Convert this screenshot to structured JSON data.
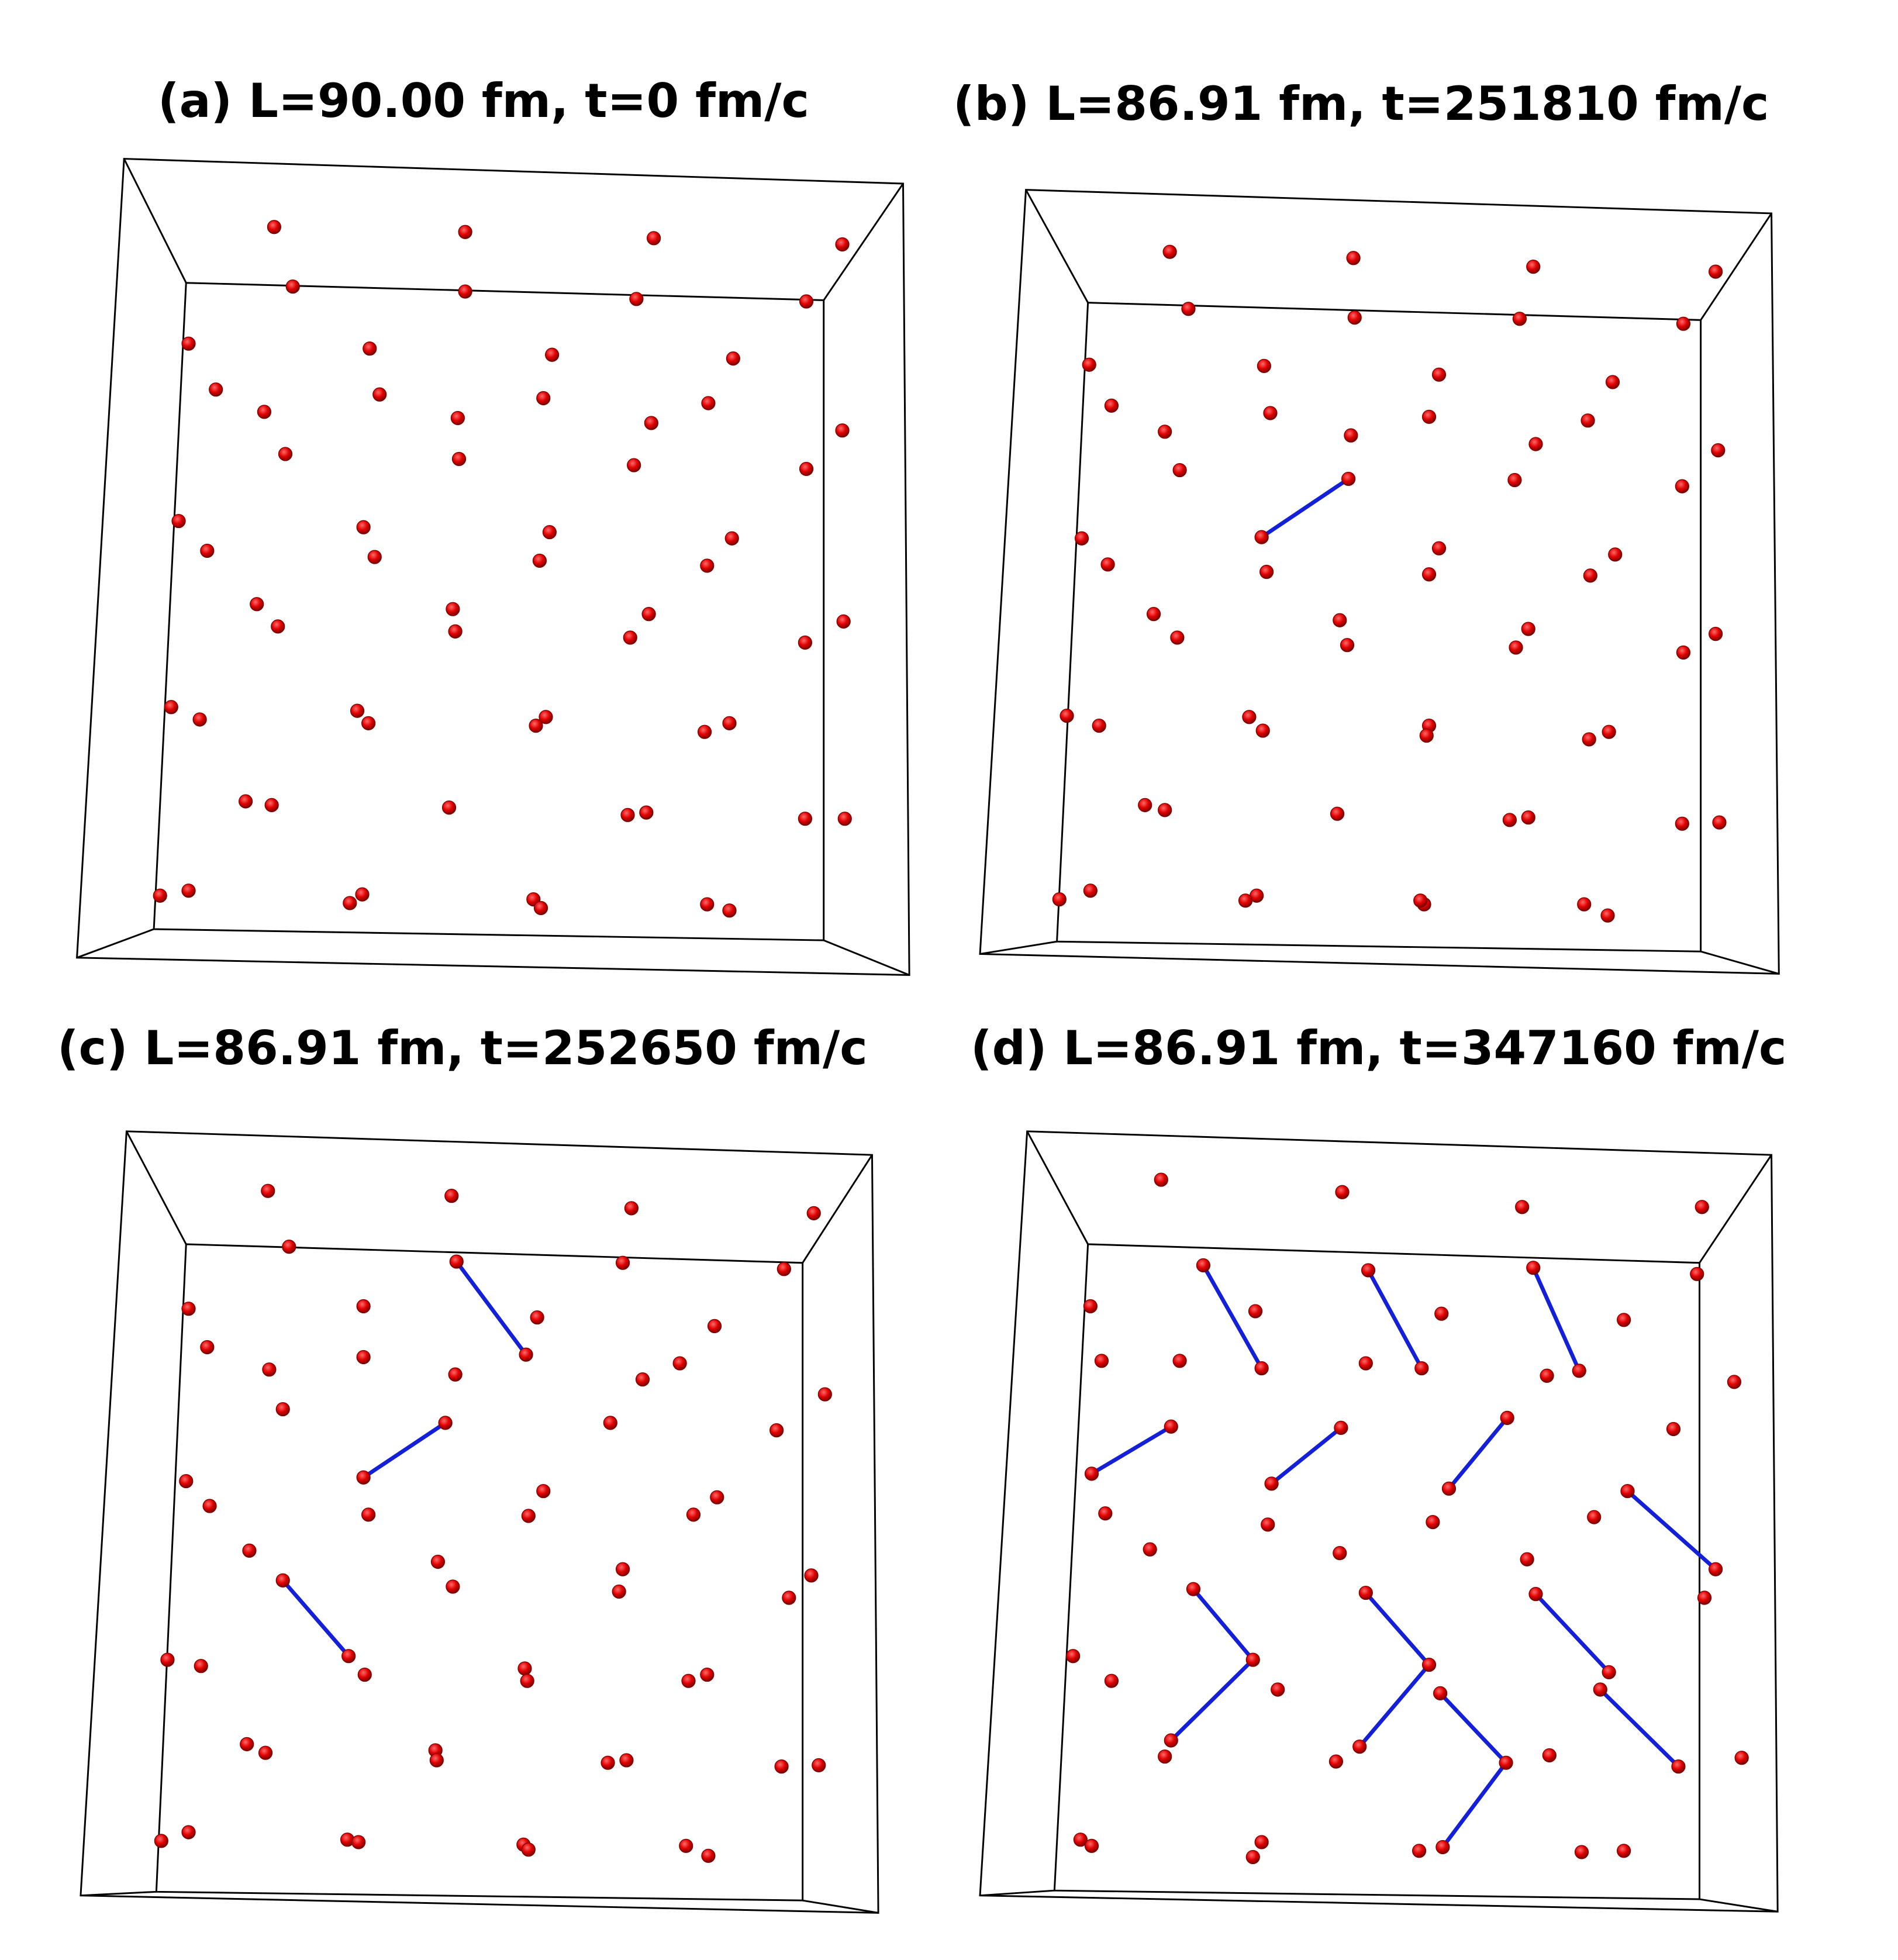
{
  "panels": [
    {
      "id": "a",
      "title": "(a) L=90.00 fm, t=0 fm/c",
      "box": {
        "front": [
          [
            150,
            228
          ],
          [
            664,
            242
          ],
          [
            664,
            758
          ],
          [
            124,
            749
          ]
        ],
        "back": [
          [
            100,
            128
          ],
          [
            728,
            148
          ],
          [
            733,
            786
          ],
          [
            62,
            772
          ]
        ]
      },
      "particles": [
        [
          221,
          183
        ],
        [
          375,
          187
        ],
        [
          527,
          192
        ],
        [
          679,
          197
        ],
        [
          236,
          231
        ],
        [
          375,
          235
        ],
        [
          513,
          241
        ],
        [
          650,
          243
        ],
        [
          152,
          277
        ],
        [
          298,
          281
        ],
        [
          445,
          286
        ],
        [
          591,
          289
        ],
        [
          174,
          314
        ],
        [
          306,
          318
        ],
        [
          438,
          321
        ],
        [
          571,
          325
        ],
        [
          213,
          332
        ],
        [
          369,
          337
        ],
        [
          525,
          341
        ],
        [
          679,
          347
        ],
        [
          230,
          366
        ],
        [
          370,
          370
        ],
        [
          511,
          375
        ],
        [
          650,
          378
        ],
        [
          144,
          420
        ],
        [
          293,
          425
        ],
        [
          443,
          429
        ],
        [
          590,
          434
        ],
        [
          167,
          444
        ],
        [
          302,
          449
        ],
        [
          435,
          452
        ],
        [
          570,
          456
        ],
        [
          207,
          487
        ],
        [
          365,
          491
        ],
        [
          523,
          495
        ],
        [
          680,
          501
        ],
        [
          224,
          505
        ],
        [
          367,
          509
        ],
        [
          508,
          514
        ],
        [
          649,
          518
        ],
        [
          138,
          570
        ],
        [
          288,
          573
        ],
        [
          440,
          578
        ],
        [
          588,
          583
        ],
        [
          161,
          580
        ],
        [
          297,
          583
        ],
        [
          432,
          585
        ],
        [
          568,
          590
        ],
        [
          198,
          646
        ],
        [
          362,
          651
        ],
        [
          521,
          655
        ],
        [
          681,
          660
        ],
        [
          219,
          649
        ],
        [
          506,
          657
        ],
        [
          649,
          660
        ],
        [
          129,
          722
        ],
        [
          292,
          721
        ],
        [
          430,
          725
        ],
        [
          570,
          729
        ],
        [
          152,
          718
        ],
        [
          282,
          728
        ],
        [
          436,
          732
        ],
        [
          588,
          734
        ]
      ],
      "bonds": []
    },
    {
      "id": "b",
      "title": "(b) L=86.91 fm, t=251810 fm/c",
      "box": {
        "front": [
          [
            877,
            244
          ],
          [
            1371,
            258
          ],
          [
            1371,
            767
          ],
          [
            852,
            759
          ]
        ],
        "back": [
          [
            827,
            153
          ],
          [
            1428,
            172
          ],
          [
            1434,
            785
          ],
          [
            790,
            769
          ]
        ]
      },
      "particles": [
        [
          943,
          203
        ],
        [
          1091,
          208
        ],
        [
          1236,
          215
        ],
        [
          1383,
          219
        ],
        [
          958,
          249
        ],
        [
          1092,
          256
        ],
        [
          1225,
          257
        ],
        [
          1357,
          261
        ],
        [
          878,
          294
        ],
        [
          1019,
          295
        ],
        [
          1160,
          302
        ],
        [
          1300,
          308
        ],
        [
          896,
          327
        ],
        [
          1024,
          333
        ],
        [
          1152,
          336
        ],
        [
          1280,
          339
        ],
        [
          939,
          348
        ],
        [
          1089,
          351
        ],
        [
          1238,
          358
        ],
        [
          1385,
          363
        ],
        [
          951,
          379
        ],
        [
          1087,
          386
        ],
        [
          1221,
          387
        ],
        [
          1356,
          392
        ],
        [
          872,
          434
        ],
        [
          1017,
          433
        ],
        [
          1160,
          442
        ],
        [
          1302,
          447
        ],
        [
          893,
          455
        ],
        [
          1021,
          461
        ],
        [
          1152,
          463
        ],
        [
          1282,
          464
        ],
        [
          930,
          495
        ],
        [
          1080,
          500
        ],
        [
          1232,
          507
        ],
        [
          1383,
          511
        ],
        [
          949,
          514
        ],
        [
          1086,
          520
        ],
        [
          1222,
          522
        ],
        [
          1357,
          526
        ],
        [
          860,
          577
        ],
        [
          1007,
          578
        ],
        [
          1152,
          585
        ],
        [
          1297,
          590
        ],
        [
          886,
          585
        ],
        [
          1018,
          589
        ],
        [
          1150,
          593
        ],
        [
          1281,
          596
        ],
        [
          923,
          649
        ],
        [
          1078,
          656
        ],
        [
          1232,
          659
        ],
        [
          1386,
          663
        ],
        [
          939,
          653
        ],
        [
          1217,
          661
        ],
        [
          1356,
          664
        ],
        [
          854,
          725
        ],
        [
          1013,
          722
        ],
        [
          1148,
          729
        ],
        [
          1296,
          738
        ],
        [
          879,
          718
        ],
        [
          1004,
          726
        ],
        [
          1145,
          726
        ],
        [
          1277,
          729
        ]
      ],
      "bonds": [
        [
          1087,
          386,
          1017,
          433
        ]
      ]
    },
    {
      "id": "c",
      "title": "(c) L=86.91 fm, t=252650 fm/c",
      "box": {
        "front": [
          [
            150,
            1003
          ],
          [
            647,
            1018
          ],
          [
            647,
            1532
          ],
          [
            126,
            1525
          ]
        ],
        "back": [
          [
            102,
            912
          ],
          [
            703,
            931
          ],
          [
            708,
            1542
          ],
          [
            65,
            1528
          ]
        ]
      },
      "particles": [
        [
          216,
          960
        ],
        [
          364,
          964
        ],
        [
          509,
          974
        ],
        [
          656,
          978
        ],
        [
          233,
          1005
        ],
        [
          368,
          1017
        ],
        [
          502,
          1018
        ],
        [
          632,
          1023
        ],
        [
          152,
          1055
        ],
        [
          293,
          1053
        ],
        [
          424,
          1092
        ],
        [
          576,
          1069
        ],
        [
          167,
          1086
        ],
        [
          293,
          1094
        ],
        [
          433,
          1062
        ],
        [
          548,
          1099
        ],
        [
          217,
          1104
        ],
        [
          367,
          1108
        ],
        [
          518,
          1112
        ],
        [
          665,
          1124
        ],
        [
          228,
          1136
        ],
        [
          359,
          1147
        ],
        [
          492,
          1147
        ],
        [
          626,
          1153
        ],
        [
          150,
          1194
        ],
        [
          293,
          1191
        ],
        [
          438,
          1202
        ],
        [
          578,
          1207
        ],
        [
          169,
          1214
        ],
        [
          297,
          1221
        ],
        [
          426,
          1222
        ],
        [
          559,
          1221
        ],
        [
          201,
          1250
        ],
        [
          353,
          1259
        ],
        [
          502,
          1265
        ],
        [
          654,
          1270
        ],
        [
          228,
          1274
        ],
        [
          365,
          1279
        ],
        [
          499,
          1283
        ],
        [
          636,
          1288
        ],
        [
          135,
          1338
        ],
        [
          281,
          1335
        ],
        [
          423,
          1345
        ],
        [
          570,
          1350
        ],
        [
          162,
          1343
        ],
        [
          294,
          1350
        ],
        [
          425,
          1355
        ],
        [
          555,
          1355
        ],
        [
          199,
          1406
        ],
        [
          351,
          1411
        ],
        [
          505,
          1419
        ],
        [
          660,
          1423
        ],
        [
          214,
          1413
        ],
        [
          352,
          1419
        ],
        [
          490,
          1421
        ],
        [
          630,
          1424
        ],
        [
          130,
          1484
        ],
        [
          280,
          1483
        ],
        [
          422,
          1487
        ],
        [
          571,
          1496
        ],
        [
          152,
          1477
        ],
        [
          289,
          1485
        ],
        [
          426,
          1491
        ],
        [
          553,
          1488
        ]
      ],
      "bonds": [
        [
          368,
          1017,
          424,
          1092
        ],
        [
          359,
          1147,
          293,
          1191
        ],
        [
          228,
          1274,
          281,
          1335
        ]
      ]
    },
    {
      "id": "d",
      "title": "(d) L=86.91 fm, t=347160 fm/c",
      "box": {
        "front": [
          [
            877,
            1003
          ],
          [
            1370,
            1018
          ],
          [
            1370,
            1531
          ],
          [
            850,
            1524
          ]
        ],
        "back": [
          [
            828,
            912
          ],
          [
            1428,
            931
          ],
          [
            1433,
            1541
          ],
          [
            790,
            1528
          ]
        ]
      },
      "particles": [
        [
          936,
          951
        ],
        [
          1082,
          961
        ],
        [
          1227,
          973
        ],
        [
          1372,
          973
        ],
        [
          970,
          1020
        ],
        [
          1103,
          1024
        ],
        [
          1236,
          1022
        ],
        [
          1368,
          1027
        ],
        [
          879,
          1053
        ],
        [
          1012,
          1057
        ],
        [
          1162,
          1059
        ],
        [
          1309,
          1064
        ],
        [
          888,
          1097
        ],
        [
          1017,
          1103
        ],
        [
          1146,
          1103
        ],
        [
          1273,
          1105
        ],
        [
          951,
          1097
        ],
        [
          1101,
          1099
        ],
        [
          1247,
          1109
        ],
        [
          1398,
          1114
        ],
        [
          944,
          1150
        ],
        [
          1081,
          1151
        ],
        [
          1215,
          1143
        ],
        [
          1349,
          1152
        ],
        [
          880,
          1188
        ],
        [
          1025,
          1196
        ],
        [
          1168,
          1200
        ],
        [
          1312,
          1202
        ],
        [
          891,
          1220
        ],
        [
          1022,
          1229
        ],
        [
          1155,
          1227
        ],
        [
          1285,
          1223
        ],
        [
          927,
          1249
        ],
        [
          1080,
          1252
        ],
        [
          1231,
          1257
        ],
        [
          1383,
          1265
        ],
        [
          962,
          1281
        ],
        [
          1101,
          1284
        ],
        [
          1238,
          1285
        ],
        [
          1374,
          1288
        ],
        [
          865,
          1335
        ],
        [
          1010,
          1338
        ],
        [
          1152,
          1342
        ],
        [
          1297,
          1348
        ],
        [
          896,
          1355
        ],
        [
          1030,
          1362
        ],
        [
          1161,
          1365
        ],
        [
          1290,
          1362
        ],
        [
          944,
          1403
        ],
        [
          1096,
          1408
        ],
        [
          1249,
          1415
        ],
        [
          1404,
          1417
        ],
        [
          939,
          1416
        ],
        [
          1077,
          1420
        ],
        [
          1214,
          1421
        ],
        [
          1353,
          1424
        ],
        [
          871,
          1483
        ],
        [
          1017,
          1485
        ],
        [
          1163,
          1489
        ],
        [
          1309,
          1492
        ],
        [
          880,
          1488
        ],
        [
          1010,
          1497
        ],
        [
          1144,
          1492
        ],
        [
          1275,
          1493
        ]
      ],
      "bonds": [
        [
          970,
          1020,
          1017,
          1103
        ],
        [
          1103,
          1024,
          1146,
          1103
        ],
        [
          1236,
          1022,
          1273,
          1105
        ],
        [
          944,
          1150,
          880,
          1188
        ],
        [
          1081,
          1151,
          1025,
          1196
        ],
        [
          1215,
          1143,
          1168,
          1200
        ],
        [
          1312,
          1202,
          1383,
          1265
        ],
        [
          962,
          1281,
          1010,
          1338
        ],
        [
          1010,
          1338,
          944,
          1403
        ],
        [
          1101,
          1284,
          1152,
          1342
        ],
        [
          1152,
          1342,
          1096,
          1408
        ],
        [
          1161,
          1365,
          1214,
          1421
        ],
        [
          1214,
          1421,
          1163,
          1489
        ],
        [
          1238,
          1285,
          1297,
          1348
        ],
        [
          1290,
          1362,
          1353,
          1424
        ]
      ]
    }
  ],
  "colors": {
    "particle": "#e00000",
    "particle_edge": "#7a0000",
    "bond": "#1420d8",
    "box": "#000000",
    "background": "#ffffff"
  }
}
